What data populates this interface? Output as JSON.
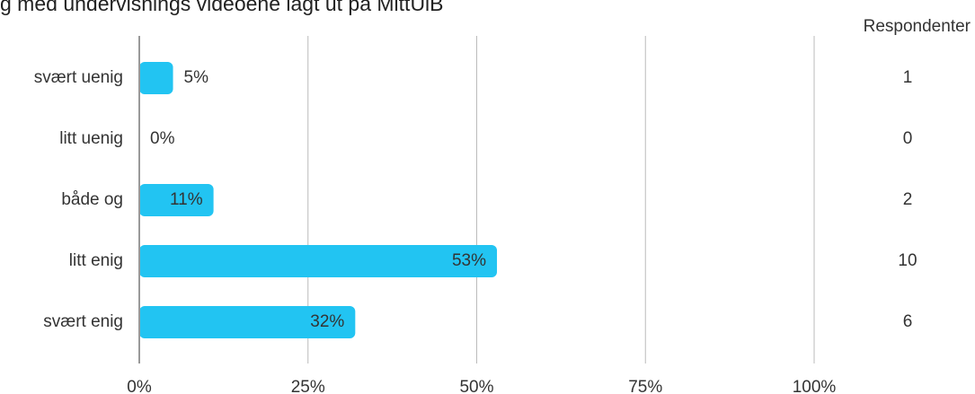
{
  "chart_data": {
    "type": "bar",
    "orientation": "horizontal",
    "title": "g med undervisnings videoene lagt ut på MittUiB",
    "categories": [
      "svært uenig",
      "litt uenig",
      "både og",
      "litt enig",
      "svært enig"
    ],
    "values": [
      5,
      0,
      11,
      53,
      32
    ],
    "value_labels": [
      "5%",
      "0%",
      "11%",
      "53%",
      "32%"
    ],
    "color": "#22c4f2",
    "xlim": [
      0,
      100
    ],
    "xticks": [
      {
        "value": 0,
        "label": "0%"
      },
      {
        "value": 25,
        "label": "25%"
      },
      {
        "value": 50,
        "label": "50%"
      },
      {
        "value": 75,
        "label": "75%"
      },
      {
        "value": 100,
        "label": "100%"
      }
    ],
    "grid": true,
    "respondents": {
      "label": "Respondenter",
      "values": [
        1,
        0,
        2,
        10,
        6
      ]
    }
  }
}
